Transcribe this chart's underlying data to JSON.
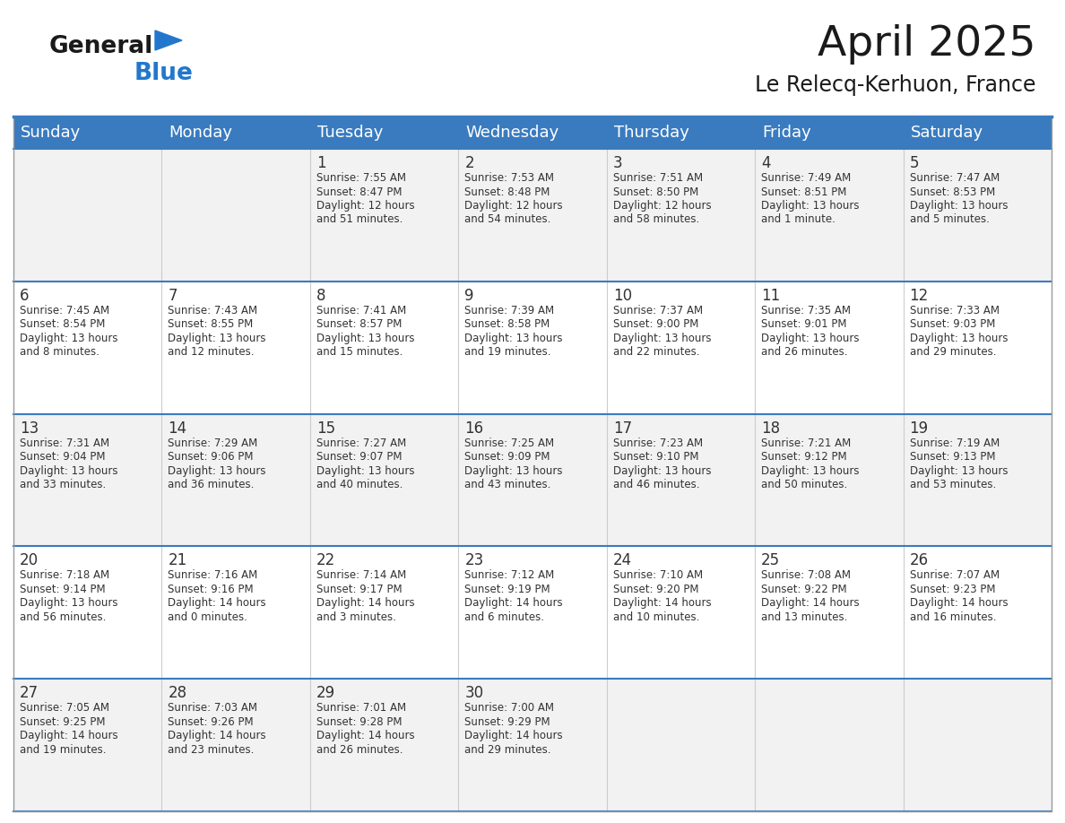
{
  "title": "April 2025",
  "subtitle": "Le Relecq-Kerhuon, France",
  "days_of_week": [
    "Sunday",
    "Monday",
    "Tuesday",
    "Wednesday",
    "Thursday",
    "Friday",
    "Saturday"
  ],
  "header_bg": "#3a7bbf",
  "header_text": "#ffffff",
  "row_bg_light": "#f2f2f2",
  "row_bg_white": "#ffffff",
  "separator_color": "#3a7bbf",
  "col_separator_color": "#cccccc",
  "cell_text_color": "#333333",
  "logo_black": "#1a1a1a",
  "logo_blue": "#2277cc",
  "calendar_data": [
    [
      {
        "day": null,
        "info": null
      },
      {
        "day": null,
        "info": null
      },
      {
        "day": 1,
        "info": "Sunrise: 7:55 AM\nSunset: 8:47 PM\nDaylight: 12 hours\nand 51 minutes."
      },
      {
        "day": 2,
        "info": "Sunrise: 7:53 AM\nSunset: 8:48 PM\nDaylight: 12 hours\nand 54 minutes."
      },
      {
        "day": 3,
        "info": "Sunrise: 7:51 AM\nSunset: 8:50 PM\nDaylight: 12 hours\nand 58 minutes."
      },
      {
        "day": 4,
        "info": "Sunrise: 7:49 AM\nSunset: 8:51 PM\nDaylight: 13 hours\nand 1 minute."
      },
      {
        "day": 5,
        "info": "Sunrise: 7:47 AM\nSunset: 8:53 PM\nDaylight: 13 hours\nand 5 minutes."
      }
    ],
    [
      {
        "day": 6,
        "info": "Sunrise: 7:45 AM\nSunset: 8:54 PM\nDaylight: 13 hours\nand 8 minutes."
      },
      {
        "day": 7,
        "info": "Sunrise: 7:43 AM\nSunset: 8:55 PM\nDaylight: 13 hours\nand 12 minutes."
      },
      {
        "day": 8,
        "info": "Sunrise: 7:41 AM\nSunset: 8:57 PM\nDaylight: 13 hours\nand 15 minutes."
      },
      {
        "day": 9,
        "info": "Sunrise: 7:39 AM\nSunset: 8:58 PM\nDaylight: 13 hours\nand 19 minutes."
      },
      {
        "day": 10,
        "info": "Sunrise: 7:37 AM\nSunset: 9:00 PM\nDaylight: 13 hours\nand 22 minutes."
      },
      {
        "day": 11,
        "info": "Sunrise: 7:35 AM\nSunset: 9:01 PM\nDaylight: 13 hours\nand 26 minutes."
      },
      {
        "day": 12,
        "info": "Sunrise: 7:33 AM\nSunset: 9:03 PM\nDaylight: 13 hours\nand 29 minutes."
      }
    ],
    [
      {
        "day": 13,
        "info": "Sunrise: 7:31 AM\nSunset: 9:04 PM\nDaylight: 13 hours\nand 33 minutes."
      },
      {
        "day": 14,
        "info": "Sunrise: 7:29 AM\nSunset: 9:06 PM\nDaylight: 13 hours\nand 36 minutes."
      },
      {
        "day": 15,
        "info": "Sunrise: 7:27 AM\nSunset: 9:07 PM\nDaylight: 13 hours\nand 40 minutes."
      },
      {
        "day": 16,
        "info": "Sunrise: 7:25 AM\nSunset: 9:09 PM\nDaylight: 13 hours\nand 43 minutes."
      },
      {
        "day": 17,
        "info": "Sunrise: 7:23 AM\nSunset: 9:10 PM\nDaylight: 13 hours\nand 46 minutes."
      },
      {
        "day": 18,
        "info": "Sunrise: 7:21 AM\nSunset: 9:12 PM\nDaylight: 13 hours\nand 50 minutes."
      },
      {
        "day": 19,
        "info": "Sunrise: 7:19 AM\nSunset: 9:13 PM\nDaylight: 13 hours\nand 53 minutes."
      }
    ],
    [
      {
        "day": 20,
        "info": "Sunrise: 7:18 AM\nSunset: 9:14 PM\nDaylight: 13 hours\nand 56 minutes."
      },
      {
        "day": 21,
        "info": "Sunrise: 7:16 AM\nSunset: 9:16 PM\nDaylight: 14 hours\nand 0 minutes."
      },
      {
        "day": 22,
        "info": "Sunrise: 7:14 AM\nSunset: 9:17 PM\nDaylight: 14 hours\nand 3 minutes."
      },
      {
        "day": 23,
        "info": "Sunrise: 7:12 AM\nSunset: 9:19 PM\nDaylight: 14 hours\nand 6 minutes."
      },
      {
        "day": 24,
        "info": "Sunrise: 7:10 AM\nSunset: 9:20 PM\nDaylight: 14 hours\nand 10 minutes."
      },
      {
        "day": 25,
        "info": "Sunrise: 7:08 AM\nSunset: 9:22 PM\nDaylight: 14 hours\nand 13 minutes."
      },
      {
        "day": 26,
        "info": "Sunrise: 7:07 AM\nSunset: 9:23 PM\nDaylight: 14 hours\nand 16 minutes."
      }
    ],
    [
      {
        "day": 27,
        "info": "Sunrise: 7:05 AM\nSunset: 9:25 PM\nDaylight: 14 hours\nand 19 minutes."
      },
      {
        "day": 28,
        "info": "Sunrise: 7:03 AM\nSunset: 9:26 PM\nDaylight: 14 hours\nand 23 minutes."
      },
      {
        "day": 29,
        "info": "Sunrise: 7:01 AM\nSunset: 9:28 PM\nDaylight: 14 hours\nand 26 minutes."
      },
      {
        "day": 30,
        "info": "Sunrise: 7:00 AM\nSunset: 9:29 PM\nDaylight: 14 hours\nand 29 minutes."
      },
      {
        "day": null,
        "info": null
      },
      {
        "day": null,
        "info": null
      },
      {
        "day": null,
        "info": null
      }
    ]
  ]
}
